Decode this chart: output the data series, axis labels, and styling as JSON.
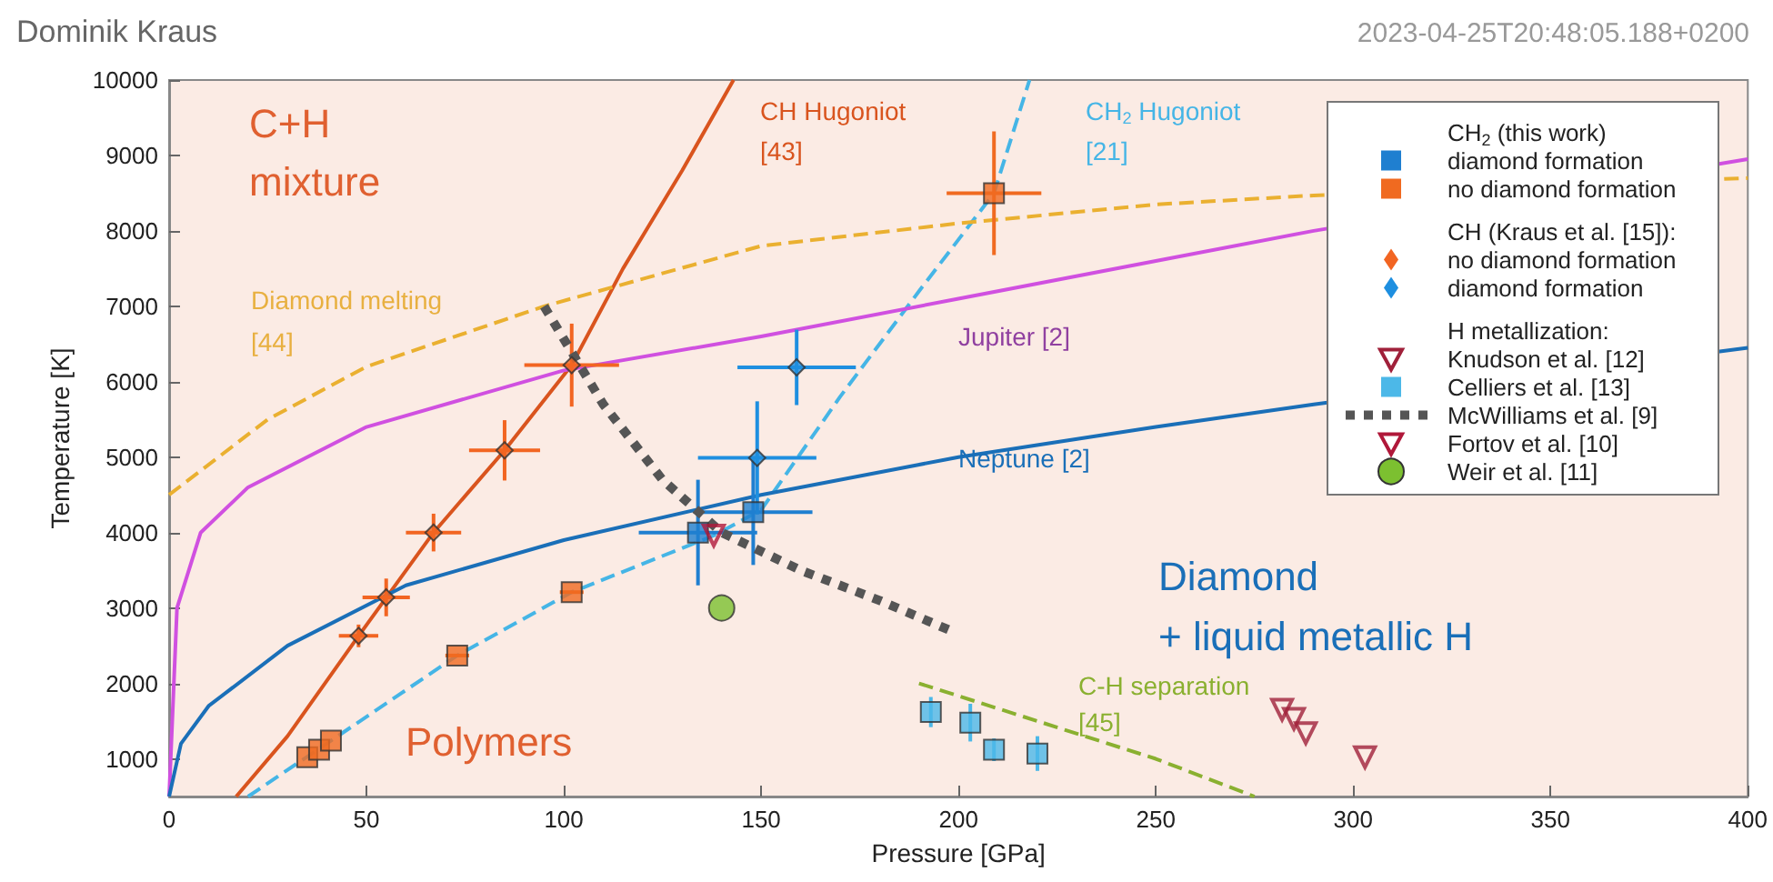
{
  "chart_data": {
    "type": "scatter",
    "title": "Dominik Kraus",
    "subtitle": "2023-04-25T20:48:05.188+0200",
    "xlabel": "Pressure [GPa]",
    "ylabel": "Temperature [K]",
    "xlim": [
      0,
      400
    ],
    "xticks": [
      0,
      50,
      100,
      150,
      200,
      250,
      300,
      350,
      400
    ],
    "ylim": [
      500,
      10000
    ],
    "yticks": [
      1000,
      2000,
      3000,
      4000,
      5000,
      6000,
      7000,
      8000,
      9000,
      10000
    ],
    "grid": false,
    "legend": "top right",
    "series": [
      {
        "name": "diamond formation",
        "marker": "square",
        "color": "#1f7fd0",
        "x": [
          134,
          148
        ],
        "values": [
          4000,
          4270
        ],
        "xerrors": [
          15,
          15
        ],
        "errors": [
          700,
          700
        ]
      },
      {
        "name": "no diamond formation",
        "marker": "square",
        "color": "#f06a20",
        "x": [
          35,
          38,
          41,
          73,
          102,
          209
        ],
        "values": [
          1020,
          1120,
          1240,
          2370,
          3210,
          8500
        ],
        "xerrors": [
          null,
          null,
          null,
          3,
          3,
          12
        ],
        "errors": [
          null,
          null,
          null,
          null,
          null,
          820
        ]
      },
      {
        "name": "no diamond formation",
        "marker": "diamond",
        "color": "#f26522",
        "x": [
          48,
          55,
          67,
          85,
          102
        ],
        "values": [
          2630,
          3140,
          4000,
          5090,
          6220
        ],
        "xerrors": [
          5,
          6,
          7,
          9,
          12
        ],
        "errors": [
          150,
          250,
          250,
          400,
          550
        ]
      },
      {
        "name": "diamond formation",
        "marker": "diamond",
        "color": "#1e8fe0",
        "x": [
          149,
          159
        ],
        "values": [
          4990,
          6190
        ],
        "xerrors": [
          15,
          15
        ],
        "errors": [
          750,
          500
        ]
      },
      {
        "name": "Knudson et al. [12]",
        "marker": "triangle",
        "color": "#a0203a",
        "x": [
          282,
          285,
          288,
          303
        ],
        "values": [
          1650,
          1530,
          1340,
          1020
        ]
      },
      {
        "name": "Celliers et al. [13]",
        "marker": "square",
        "color": "#4cb8e8",
        "x": [
          193,
          203,
          209,
          220
        ],
        "values": [
          1620,
          1480,
          1120,
          1070
        ],
        "errors": [
          200,
          250,
          150,
          230
        ]
      },
      {
        "name": "McWilliams et al. [9]",
        "type": "line",
        "marker": "none",
        "line_style": "dotted",
        "color": "#555555",
        "x": [
          95,
          110,
          125,
          140,
          160,
          180,
          198
        ],
        "values": [
          7000,
          5700,
          4700,
          4000,
          3500,
          3100,
          2700
        ]
      },
      {
        "name": "Fortov et al. [10]",
        "marker": "triangle",
        "color": "#b0183a",
        "x": [
          138
        ],
        "values": [
          3960
        ]
      },
      {
        "name": "Weir et al. [11]",
        "marker": "circle",
        "color": "#7cc030",
        "x": [
          140
        ],
        "values": [
          3000
        ]
      },
      {
        "type": "line",
        "marker": "none",
        "line_style": "solid",
        "color": "#d9541e",
        "x": [
          17,
          30,
          48,
          67,
          85,
          102,
          115,
          130,
          143
        ],
        "values": [
          500,
          1300,
          2630,
          4000,
          5090,
          6220,
          7500,
          8800,
          10000
        ]
      },
      {
        "type": "line",
        "marker": "none",
        "line_style": "dashed",
        "color": "#45b5e6",
        "x": [
          20,
          41,
          73,
          102,
          138,
          150,
          170,
          190,
          209,
          218
        ],
        "values": [
          500,
          1240,
          2370,
          3210,
          3960,
          4300,
          5800,
          7200,
          8500,
          10000
        ]
      },
      {
        "type": "line",
        "marker": "none",
        "line_style": "solid",
        "color": "#d050e0",
        "x": [
          0,
          2,
          8,
          20,
          50,
          100,
          150,
          200,
          250,
          290,
          400
        ],
        "values": [
          500,
          3000,
          4000,
          4600,
          5400,
          6150,
          6600,
          7100,
          7600,
          8000,
          8950
        ]
      },
      {
        "type": "line",
        "marker": "none",
        "line_style": "solid",
        "color": "#1a6fb8",
        "x": [
          0,
          3,
          10,
          30,
          60,
          100,
          150,
          200,
          250,
          290,
          400
        ],
        "values": [
          500,
          1200,
          1700,
          2500,
          3300,
          3900,
          4500,
          5000,
          5400,
          5700,
          6450
        ]
      },
      {
        "type": "line",
        "marker": "none",
        "line_style": "dashed",
        "color": "#eab030",
        "x": [
          0,
          25,
          50,
          95,
          150,
          200,
          250,
          290,
          400
        ],
        "values": [
          4500,
          5500,
          6200,
          7000,
          7800,
          8100,
          8350,
          8470,
          8700
        ]
      },
      {
        "type": "line",
        "marker": "none",
        "line_style": "dashed",
        "color": "#8ab030",
        "x": [
          190,
          220,
          250,
          275
        ],
        "values": [
          2000,
          1500,
          1000,
          500
        ]
      }
    ],
    "annotations": [
      "CH$_{2}$ (this work)",
      "CH (Kraus et al. [15]):",
      "H metallization:",
      "C+H",
      "mixture",
      "Diamond melting",
      "[44]",
      "CH Hugoniot",
      "[43]",
      "CH$_{2}$ Hugoniot",
      "[21]",
      "Jupiter [2]",
      "Neptune [2]",
      "Polymers",
      "Diamond",
      "+ liquid metallic H",
      "C-H separation",
      "[45]"
    ]
  }
}
